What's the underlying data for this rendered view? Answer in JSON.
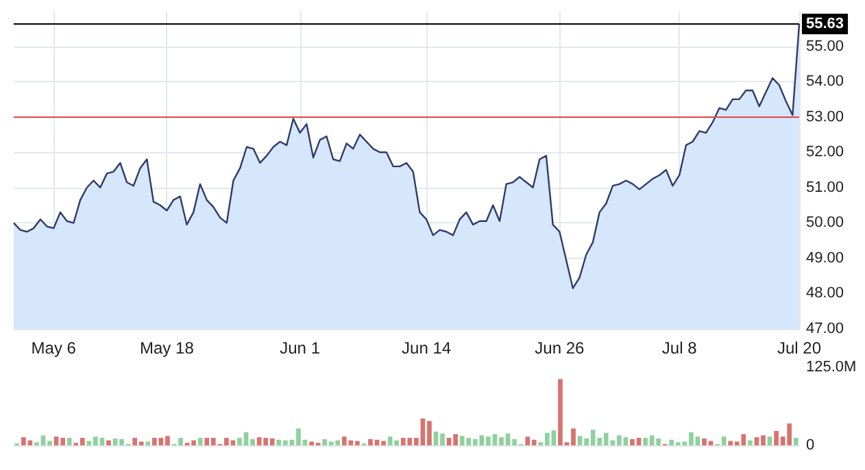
{
  "chart_data": [
    {
      "type": "area",
      "categories": [
        null,
        null,
        null,
        null,
        null,
        null,
        "May 6",
        null,
        null,
        null,
        null,
        null,
        null,
        null,
        null,
        null,
        null,
        null,
        null,
        null,
        null,
        null,
        null,
        "May 18",
        null,
        null,
        null,
        null,
        null,
        null,
        null,
        null,
        null,
        null,
        null,
        null,
        null,
        null,
        null,
        null,
        null,
        null,
        null,
        "Jun 1",
        null,
        null,
        null,
        null,
        null,
        null,
        null,
        null,
        null,
        null,
        null,
        null,
        null,
        null,
        null,
        null,
        null,
        null,
        "Jun 14",
        null,
        null,
        null,
        null,
        null,
        null,
        null,
        null,
        null,
        null,
        null,
        null,
        null,
        null,
        null,
        null,
        null,
        null,
        null,
        "Jun 26",
        null,
        null,
        null,
        null,
        null,
        null,
        null,
        null,
        null,
        null,
        null,
        null,
        null,
        null,
        null,
        null,
        null,
        "Jul 8",
        null,
        null,
        null,
        null,
        null,
        null,
        null,
        null,
        null,
        null,
        null,
        null,
        null,
        null,
        null,
        null,
        null,
        "Jul 20"
      ],
      "series": [
        {
          "color": "#2e3a6b",
          "values": [
            50.0,
            49.8,
            49.75,
            49.85,
            50.1,
            49.9,
            49.85,
            50.3,
            50.05,
            50.0,
            50.65,
            51.0,
            51.2,
            51.0,
            51.4,
            51.45,
            51.7,
            51.15,
            51.05,
            51.55,
            51.8,
            50.6,
            50.5,
            50.35,
            50.65,
            50.75,
            49.95,
            50.3,
            51.1,
            50.65,
            50.45,
            50.15,
            50.0,
            51.2,
            51.55,
            52.15,
            52.1,
            51.7,
            51.9,
            52.15,
            52.3,
            52.2,
            52.95,
            52.55,
            52.8,
            51.85,
            52.35,
            52.45,
            51.8,
            51.75,
            52.25,
            52.1,
            52.5,
            52.3,
            52.1,
            52.0,
            52.0,
            51.6,
            51.6,
            51.7,
            51.45,
            50.3,
            50.1,
            49.65,
            49.8,
            49.75,
            49.65,
            50.1,
            50.3,
            49.95,
            50.05,
            50.05,
            50.5,
            50.05,
            51.1,
            51.15,
            51.3,
            51.15,
            51.0,
            51.8,
            51.9,
            49.95,
            49.75,
            48.95,
            48.15,
            48.45,
            49.1,
            49.45,
            50.3,
            50.55,
            51.05,
            51.1,
            51.2,
            51.1,
            50.95,
            51.1,
            51.25,
            51.35,
            51.5,
            51.05,
            51.35,
            52.2,
            52.3,
            52.6,
            52.55,
            52.85,
            53.25,
            53.2,
            53.5,
            53.5,
            53.75,
            53.75,
            53.3,
            53.7,
            54.1,
            53.9,
            53.45,
            53.05,
            55.63
          ]
        }
      ],
      "ylim": [
        47,
        56
      ],
      "yticks": [
        {
          "value": 47,
          "label": "47.00"
        },
        {
          "value": 48,
          "label": "48.00"
        },
        {
          "value": 49,
          "label": "49.00"
        },
        {
          "value": 50,
          "label": "50.00"
        },
        {
          "value": 51,
          "label": "51.00"
        },
        {
          "value": 52,
          "label": "52.00"
        },
        {
          "value": 53,
          "label": "53.00"
        },
        {
          "value": 54,
          "label": "54.00"
        },
        {
          "value": 55,
          "label": "55.00"
        }
      ],
      "ref_lines": [
        {
          "axis": "y",
          "value": 55.63,
          "label": "55.63",
          "color": "#000000"
        },
        {
          "axis": "y",
          "value": 53,
          "color": "#e04545"
        }
      ],
      "grid": true
    },
    {
      "type": "bar",
      "categories": [
        null,
        null,
        null,
        null,
        null,
        null,
        null,
        null,
        null,
        null,
        null,
        null,
        null,
        null,
        null,
        null,
        null,
        null,
        null,
        null,
        null,
        null,
        null,
        null,
        null,
        null,
        null,
        null,
        null,
        null,
        null,
        null,
        null,
        null,
        null,
        null,
        null,
        null,
        null,
        null,
        null,
        null,
        null,
        null,
        null,
        null,
        null,
        null,
        null,
        null,
        null,
        null,
        null,
        null,
        null,
        null,
        null,
        null,
        null,
        null,
        null,
        null,
        null,
        null,
        null,
        null,
        null,
        null,
        null,
        null,
        null,
        null,
        null,
        null,
        null,
        null,
        null,
        null,
        null,
        null,
        null,
        null,
        null,
        null,
        null,
        null,
        null,
        null,
        null,
        null,
        null,
        null,
        null,
        null,
        null,
        null,
        null,
        null,
        null,
        null,
        null,
        null,
        null,
        null,
        null,
        null,
        null,
        null,
        null,
        null,
        null,
        null,
        null,
        null,
        null,
        null,
        null,
        null,
        null,
        null
      ],
      "values": [
        3,
        13,
        8,
        5,
        16,
        7,
        14,
        12,
        12,
        4,
        12,
        7,
        14,
        12,
        8,
        11,
        10,
        2,
        12,
        6,
        6,
        12,
        12,
        15,
        2,
        12,
        4,
        8,
        12,
        12,
        12,
        2,
        12,
        8,
        12,
        21,
        10,
        13,
        12,
        11,
        9,
        8,
        9,
        27,
        9,
        6,
        4,
        10,
        6,
        8,
        14,
        8,
        7,
        3,
        10,
        9,
        7,
        14,
        8,
        12,
        12,
        12,
        43,
        39,
        22,
        19,
        12,
        18,
        15,
        12,
        10,
        16,
        14,
        18,
        13,
        19,
        10,
        2,
        14,
        9,
        5,
        20,
        24,
        106,
        5,
        27,
        15,
        11,
        25,
        12,
        20,
        8,
        16,
        13,
        10,
        12,
        12,
        16,
        11,
        2,
        9,
        5,
        6,
        21,
        14,
        11,
        7,
        2,
        14,
        7,
        6,
        18,
        8,
        13,
        16,
        14,
        23,
        14,
        35,
        12
      ],
      "colors": [
        "#8fd19e",
        "#d8736f",
        "#d8736f",
        "#8fd19e",
        "#8fd19e",
        "#8fd19e",
        "#d8736f",
        "#d8736f",
        "#8fd19e",
        "#d8736f",
        "#d8736f",
        "#8fd19e",
        "#8fd19e",
        "#8fd19e",
        "#d8736f",
        "#8fd19e",
        "#8fd19e",
        "#8fd19e",
        "#d8736f",
        "#d8736f",
        "#8fd19e",
        "#d8736f",
        "#d8736f",
        "#d8736f",
        "#8fd19e",
        "#8fd19e",
        "#d8736f",
        "#d8736f",
        "#8fd19e",
        "#d8736f",
        "#d8736f",
        "#d8736f",
        "#d8736f",
        "#d8736f",
        "#8fd19e",
        "#8fd19e",
        "#8fd19e",
        "#d8736f",
        "#d8736f",
        "#d8736f",
        "#8fd19e",
        "#8fd19e",
        "#8fd19e",
        "#8fd19e",
        "#8fd19e",
        "#d8736f",
        "#d8736f",
        "#8fd19e",
        "#8fd19e",
        "#8fd19e",
        "#d8736f",
        "#d8736f",
        "#d8736f",
        "#8fd19e",
        "#d8736f",
        "#d8736f",
        "#d8736f",
        "#8fd19e",
        "#8fd19e",
        "#d8736f",
        "#d8736f",
        "#d8736f",
        "#d8736f",
        "#d8736f",
        "#8fd19e",
        "#8fd19e",
        "#d8736f",
        "#d8736f",
        "#8fd19e",
        "#8fd19e",
        "#8fd19e",
        "#8fd19e",
        "#8fd19e",
        "#8fd19e",
        "#8fd19e",
        "#8fd19e",
        "#8fd19e",
        "#8fd19e",
        "#d8736f",
        "#d8736f",
        "#8fd19e",
        "#8fd19e",
        "#8fd19e",
        "#d8736f",
        "#d8736f",
        "#d8736f",
        "#8fd19e",
        "#8fd19e",
        "#8fd19e",
        "#8fd19e",
        "#8fd19e",
        "#8fd19e",
        "#8fd19e",
        "#8fd19e",
        "#d8736f",
        "#d8736f",
        "#8fd19e",
        "#8fd19e",
        "#8fd19e",
        "#d8736f",
        "#8fd19e",
        "#8fd19e",
        "#8fd19e",
        "#8fd19e",
        "#8fd19e",
        "#d8736f",
        "#d8736f",
        "#8fd19e",
        "#8fd19e",
        "#d8736f",
        "#d8736f",
        "#d8736f",
        "#8fd19e",
        "#d8736f",
        "#d8736f",
        "#8fd19e",
        "#d8736f",
        "#d8736f",
        "#d8736f",
        "#8fd19e"
      ],
      "ylim": [
        0,
        125
      ],
      "yticks": [
        {
          "value": 0,
          "label": "0"
        },
        {
          "value": 125,
          "label": "125.0M"
        }
      ],
      "tick_labels": "y"
    }
  ]
}
